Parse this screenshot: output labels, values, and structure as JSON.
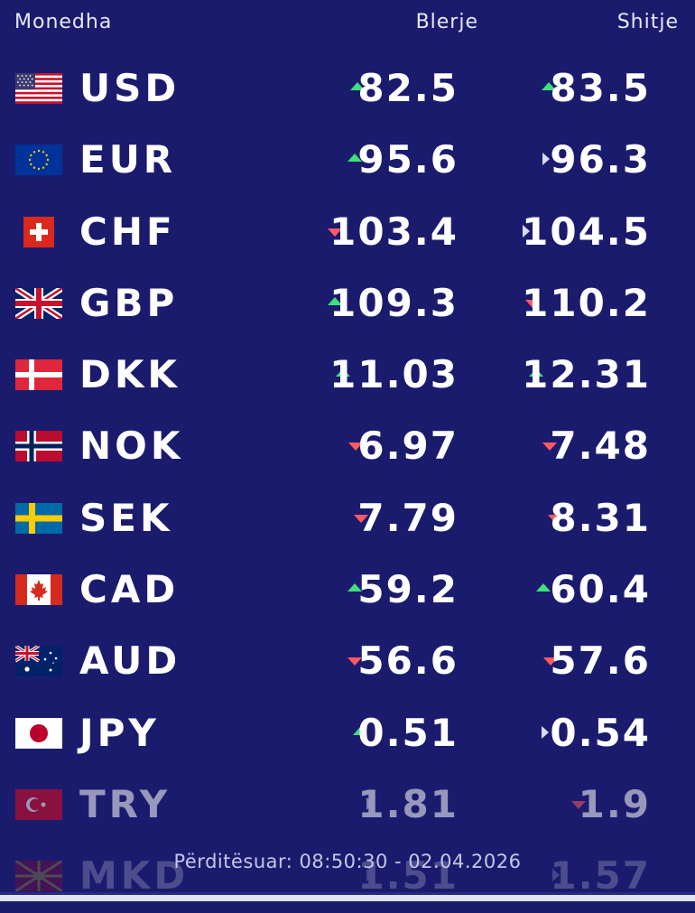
{
  "header": {
    "currency": "Monedha",
    "buy": "Blerje",
    "sell": "Shitje"
  },
  "colors": {
    "background": "#1b1b6e",
    "up": "#3ee07a",
    "down": "#ff5a62",
    "flat": "#d9dbef"
  },
  "rates": [
    {
      "code": "USD",
      "flag": "us-flag-icon",
      "buy": "82.5",
      "buy_trend": "up",
      "sell": "83.5",
      "sell_trend": "up"
    },
    {
      "code": "EUR",
      "flag": "eu-flag-icon",
      "buy": "95.6",
      "buy_trend": "up",
      "sell": "96.3",
      "sell_trend": "flat"
    },
    {
      "code": "CHF",
      "flag": "ch-flag-icon",
      "buy": "103.4",
      "buy_trend": "down",
      "sell": "104.5",
      "sell_trend": "flat"
    },
    {
      "code": "GBP",
      "flag": "gb-flag-icon",
      "buy": "109.3",
      "buy_trend": "up",
      "sell": "110.2",
      "sell_trend": "down"
    },
    {
      "code": "DKK",
      "flag": "dk-flag-icon",
      "buy": "11.03",
      "buy_trend": "up",
      "sell": "12.31",
      "sell_trend": "up"
    },
    {
      "code": "NOK",
      "flag": "no-flag-icon",
      "buy": "6.97",
      "buy_trend": "down",
      "sell": "7.48",
      "sell_trend": "down"
    },
    {
      "code": "SEK",
      "flag": "se-flag-icon",
      "buy": "7.79",
      "buy_trend": "down",
      "sell": "8.31",
      "sell_trend": "down"
    },
    {
      "code": "CAD",
      "flag": "ca-flag-icon",
      "buy": "59.2",
      "buy_trend": "up",
      "sell": "60.4",
      "sell_trend": "up"
    },
    {
      "code": "AUD",
      "flag": "au-flag-icon",
      "buy": "56.6",
      "buy_trend": "down",
      "sell": "57.6",
      "sell_trend": "down"
    },
    {
      "code": "JPY",
      "flag": "jp-flag-icon",
      "buy": "0.51",
      "buy_trend": "up",
      "sell": "0.54",
      "sell_trend": "flat"
    },
    {
      "code": "TRY",
      "flag": "tr-flag-icon",
      "buy": "1.81",
      "buy_trend": "flat",
      "sell": "1.9",
      "sell_trend": "down"
    },
    {
      "code": "MKD",
      "flag": "mk-flag-icon",
      "buy": "1.51",
      "buy_trend": "flat",
      "sell": "1.57",
      "sell_trend": "flat"
    }
  ],
  "updated": "Përditësuar: 08:50:30 - 02.04.2026"
}
